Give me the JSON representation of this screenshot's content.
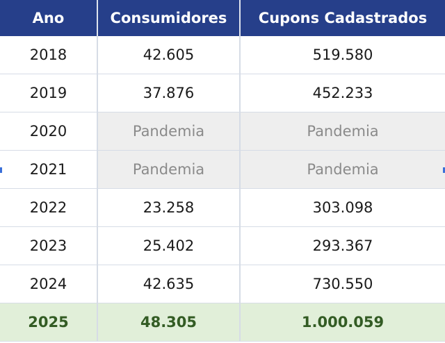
{
  "table": {
    "headers": [
      "Ano",
      "Consumidores",
      "Cupons Cadastrados"
    ],
    "rows": [
      {
        "ano": "2018",
        "consumidores": "42.605",
        "cupons": "519.580"
      },
      {
        "ano": "2019",
        "consumidores": "37.876",
        "cupons": "452.233"
      },
      {
        "ano": "2020",
        "consumidores": "Pandemia",
        "cupons": "Pandemia"
      },
      {
        "ano": "2021",
        "consumidores": "Pandemia",
        "cupons": "Pandemia"
      },
      {
        "ano": "2022",
        "consumidores": "23.258",
        "cupons": "303.098"
      },
      {
        "ano": "2023",
        "consumidores": "25.402",
        "cupons": "293.367"
      },
      {
        "ano": "2024",
        "consumidores": "42.635",
        "cupons": "730.550"
      },
      {
        "ano": "2025",
        "consumidores": "48.305",
        "cupons": "1.000.059"
      }
    ]
  },
  "colors": {
    "header_bg": "#263f8a",
    "header_text": "#ffffff",
    "pandemic_bg": "#eeeeee",
    "pandemic_text": "#8a8a8a",
    "total_bg": "#e1efd9",
    "total_text": "#335c24"
  }
}
